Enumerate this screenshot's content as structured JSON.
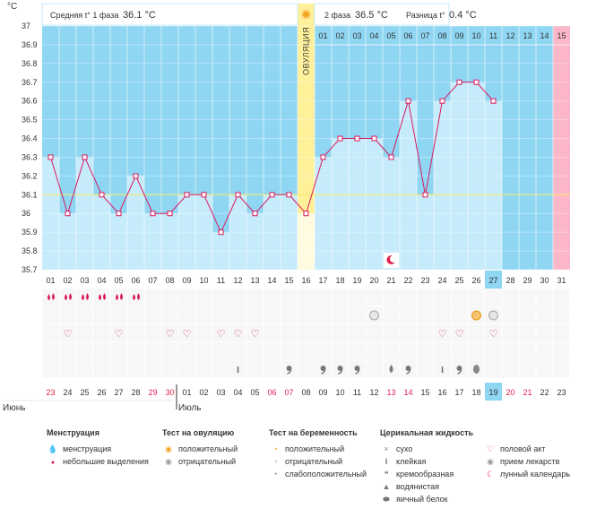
{
  "header": {
    "unit": "°C",
    "phase1_label": "Средняя t° 1 фаза",
    "phase1_value": "36.1 °C",
    "phase2_label": "2 фаза",
    "phase2_value": "36.5 °C",
    "diff_label": "Разница t°",
    "diff_value": "0.4 °C"
  },
  "ovulation_label": "ОВУЛЯЦИЯ",
  "cycle_days_top": [
    "01",
    "02",
    "03",
    "04",
    "05",
    "06",
    "07",
    "08",
    "09",
    "10",
    "11",
    "12",
    "13",
    "14",
    "15"
  ],
  "chart_data": {
    "type": "line",
    "title": "",
    "ylabel": "°C",
    "ylim": [
      35.7,
      37.0
    ],
    "yticks": [
      "35.7",
      "35.8",
      "35.9",
      "36",
      "36.1",
      "36.2",
      "36.3",
      "36.4",
      "36.5",
      "36.6",
      "36.7",
      "36.8",
      "36.9",
      "37"
    ],
    "cycle_days": [
      "01",
      "02",
      "03",
      "04",
      "05",
      "06",
      "07",
      "08",
      "09",
      "10",
      "11",
      "12",
      "13",
      "14",
      "15",
      "16",
      "17",
      "18",
      "19",
      "20",
      "21",
      "22",
      "23",
      "24",
      "25",
      "26",
      "27",
      "28",
      "29",
      "30",
      "31"
    ],
    "series": [
      {
        "name": "Базальная температура",
        "values": [
          36.3,
          36.0,
          36.3,
          36.1,
          36.0,
          36.2,
          36.0,
          36.0,
          36.1,
          36.1,
          35.9,
          36.1,
          36.0,
          36.1,
          36.1,
          36.0,
          36.3,
          36.4,
          36.4,
          36.4,
          36.3,
          36.6,
          36.1,
          36.6,
          36.7,
          36.7,
          36.6
        ]
      }
    ],
    "coverline": 36.1,
    "ovulation_day": 16,
    "current_day": "27",
    "moon_day": 21
  },
  "dates": {
    "values": [
      "23",
      "24",
      "25",
      "26",
      "27",
      "28",
      "29",
      "30",
      "01",
      "02",
      "03",
      "04",
      "05",
      "06",
      "07",
      "08",
      "09",
      "10",
      "11",
      "12",
      "13",
      "14",
      "15",
      "16",
      "17",
      "18",
      "19",
      "20",
      "21",
      "22",
      "23"
    ],
    "red": [
      0,
      6,
      7,
      13,
      14,
      20,
      21,
      27,
      28
    ],
    "today_index": 26,
    "months": [
      "Июнь",
      "Июль"
    ]
  },
  "markers": {
    "menstruation": [
      1,
      2,
      3,
      4,
      5,
      6
    ],
    "ov_negative": [
      20,
      27
    ],
    "ov_positive": [
      26
    ],
    "sex": [
      2,
      5,
      8,
      9,
      11,
      12,
      13,
      24,
      25,
      27
    ],
    "fluid_sticky": [
      12,
      24
    ],
    "fluid_creamy": [
      15,
      17,
      18,
      19,
      22,
      25
    ],
    "fluid_watery": [
      21
    ],
    "fluid_eggwhite": [
      26
    ]
  },
  "legend": {
    "menstruation": {
      "title": "Менструация",
      "items": [
        "менструация",
        "небольшие выделения"
      ]
    },
    "ovulation_test": {
      "title": "Тест на овуляцию",
      "items": [
        "положительный",
        "отрицательный"
      ]
    },
    "pregnancy_test": {
      "title": "Тест на беременность",
      "items": [
        "положительный",
        "отрицательный",
        "слабоположительный"
      ]
    },
    "cervical_fluid": {
      "title": "Церикальная жидкость",
      "items": [
        "сухо",
        "клейкая",
        "кремообразная",
        "водянистая",
        "яичный белок"
      ]
    },
    "other": {
      "items": [
        "половой акт",
        "прием лекарств",
        "лунный календарь"
      ]
    }
  },
  "colors": {
    "sky": "#8fd6f3",
    "bar": "#c6ebfb",
    "ovulation": "#fff09a",
    "line": "#d81b60",
    "pink": "#fbb6c9",
    "grid": "#f2f2f2",
    "red_text": "#e0204a"
  }
}
